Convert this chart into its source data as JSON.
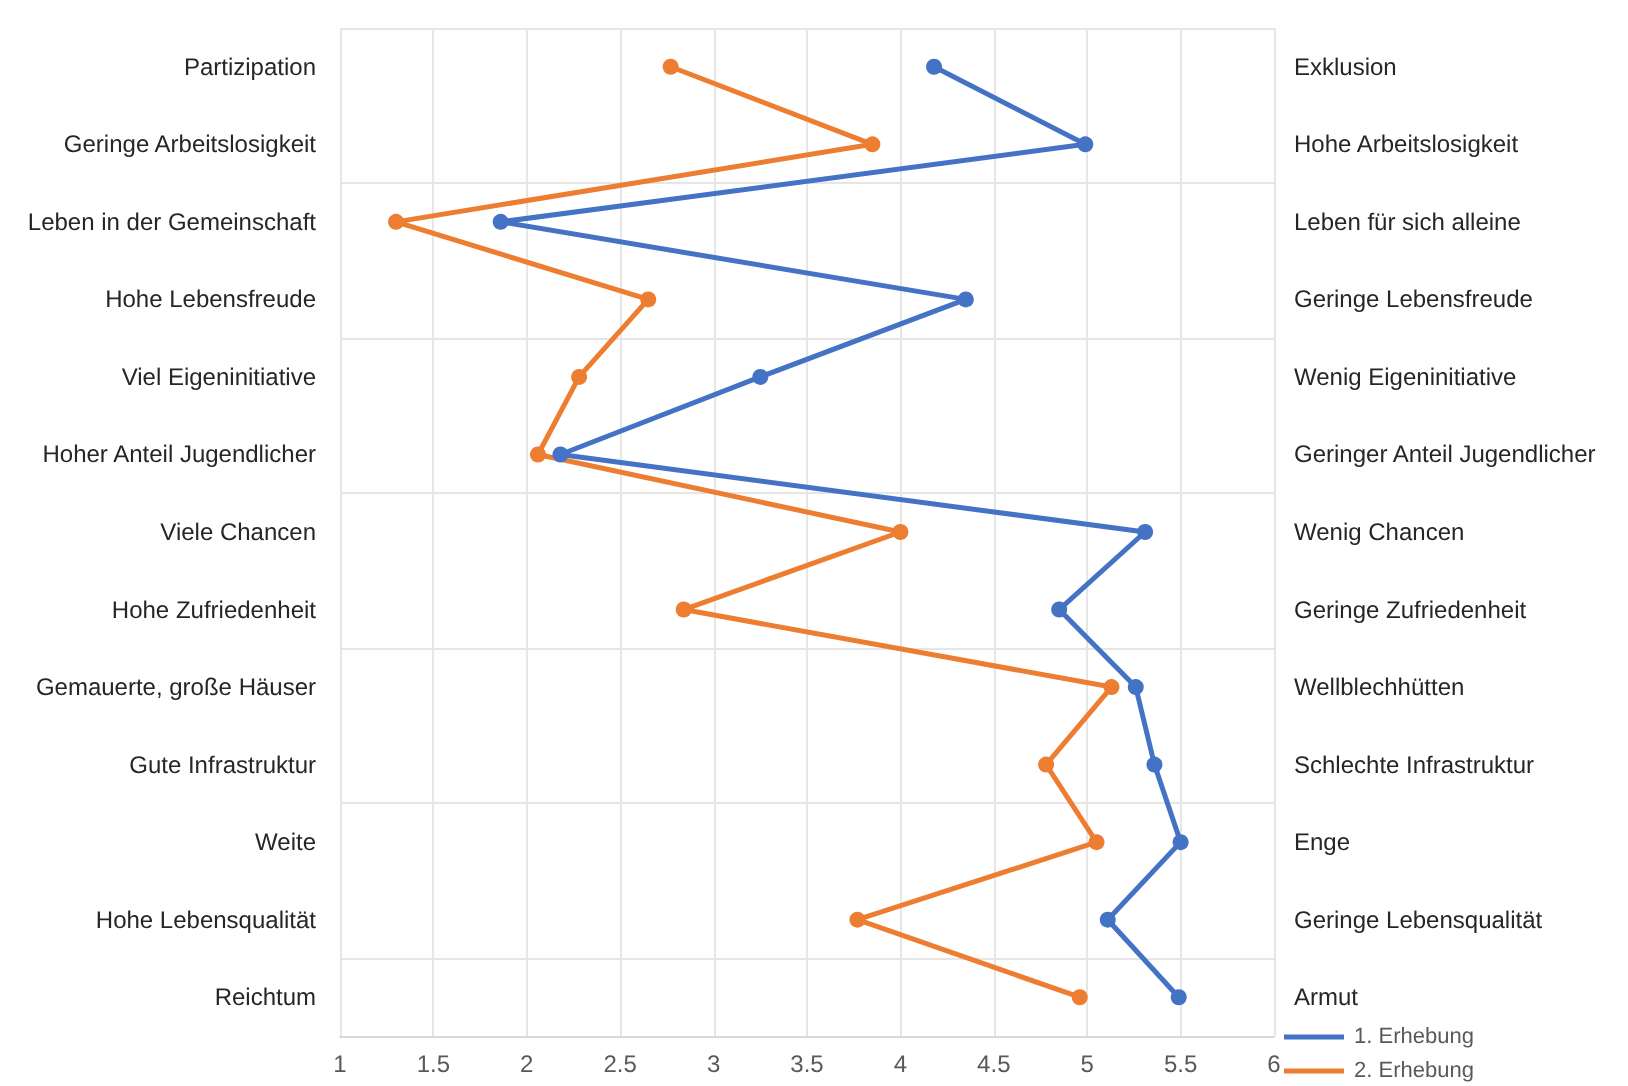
{
  "chart_data": {
    "type": "line",
    "orientation": "horizontal",
    "categories": [
      "Partizipation",
      "Geringe Arbeitslosigkeit",
      "Leben in der Gemeinschaft",
      "Hohe Lebensfreude",
      "Viel Eigeninitiative",
      "Hoher Anteil Jugendlicher",
      "Viele Chancen",
      "Hohe Zufriedenheit",
      "Gemauerte, große Häuser",
      "Gute Infrastruktur",
      "Weite",
      "Hohe Lebensqualität",
      "Reichtum"
    ],
    "y2_categories": [
      "Exklusion",
      "Hohe Arbeitslosigkeit",
      "Leben für sich alleine",
      "Geringe Lebensfreude",
      "Wenig Eigeninitiative",
      "Geringer Anteil Jugendlicher",
      "Wenig Chancen",
      "Geringe Zufriedenheit",
      "Wellblechhütten",
      "Schlechte Infrastruktur",
      "Enge",
      "Geringe Lebensqualität",
      "Armut"
    ],
    "series": [
      {
        "name": "1. Erhebung",
        "color": "#4472c4",
        "values": [
          4.18,
          4.99,
          1.86,
          4.35,
          3.25,
          2.18,
          5.31,
          4.85,
          5.26,
          5.36,
          5.5,
          5.11,
          5.49
        ]
      },
      {
        "name": "2. Erhebung",
        "color": "#ed7d31",
        "values": [
          2.77,
          3.85,
          1.3,
          2.65,
          2.28,
          2.06,
          4.0,
          2.84,
          5.13,
          4.78,
          5.05,
          3.77,
          4.96
        ]
      }
    ],
    "xlim": [
      1,
      6
    ],
    "xticks": [
      1,
      1.5,
      2,
      2.5,
      3,
      3.5,
      4,
      4.5,
      5,
      5.5,
      6
    ],
    "grid": true,
    "legend": "bottom right",
    "marker": "circle",
    "line_style": "solid"
  }
}
